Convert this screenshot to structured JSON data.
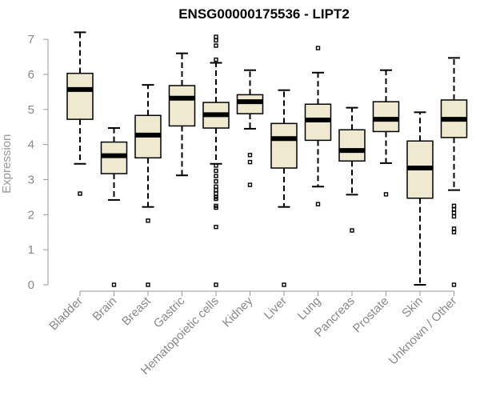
{
  "chart_data": {
    "type": "box",
    "title": "ENSG00000175536 - LIPT2",
    "ylabel": "Expression",
    "xlabel": "",
    "ylim": [
      0,
      7.3
    ],
    "yticks": [
      0,
      1,
      2,
      3,
      4,
      5,
      6,
      7
    ],
    "grid": false,
    "legend": "none",
    "colors": {
      "box_fill": "#efe9cf",
      "stroke": "#000000",
      "axis": "#999999"
    },
    "categories": [
      "Bladder",
      "Brain",
      "Breast",
      "Gastric",
      "Hematopoietic cells",
      "Kidney",
      "Liver",
      "Lung",
      "Pancreas",
      "Prostate",
      "Skin",
      "Unknown / Other"
    ],
    "boxes": [
      {
        "whisker_low": 3.45,
        "q1": 4.72,
        "median": 5.57,
        "q3": 6.03,
        "whisker_high": 7.2,
        "outliers": [
          2.6
        ]
      },
      {
        "whisker_low": 2.42,
        "q1": 3.17,
        "median": 3.68,
        "q3": 4.07,
        "whisker_high": 4.47,
        "outliers": [
          0
        ]
      },
      {
        "whisker_low": 2.22,
        "q1": 3.62,
        "median": 4.27,
        "q3": 4.83,
        "whisker_high": 5.7,
        "outliers": [
          1.83,
          0
        ]
      },
      {
        "whisker_low": 3.12,
        "q1": 4.53,
        "median": 5.32,
        "q3": 5.68,
        "whisker_high": 6.6,
        "outliers": []
      },
      {
        "whisker_low": 3.45,
        "q1": 4.47,
        "median": 4.85,
        "q3": 5.2,
        "whisker_high": 6.33,
        "outliers": [
          7.07,
          6.97,
          6.82,
          6.42,
          3.4,
          3.25,
          3.1,
          2.95,
          2.8,
          2.7,
          2.6,
          2.5,
          2.45,
          2.25,
          2.2,
          1.65,
          0
        ]
      },
      {
        "whisker_low": 4.45,
        "q1": 4.88,
        "median": 5.22,
        "q3": 5.42,
        "whisker_high": 6.12,
        "outliers": [
          3.7,
          3.5,
          2.85
        ]
      },
      {
        "whisker_low": 2.22,
        "q1": 3.33,
        "median": 4.17,
        "q3": 4.6,
        "whisker_high": 5.55,
        "outliers": [
          0
        ]
      },
      {
        "whisker_low": 2.8,
        "q1": 4.12,
        "median": 4.7,
        "q3": 5.15,
        "whisker_high": 6.05,
        "outliers": [
          6.75,
          2.3
        ]
      },
      {
        "whisker_low": 2.57,
        "q1": 3.53,
        "median": 3.83,
        "q3": 4.42,
        "whisker_high": 5.05,
        "outliers": [
          1.55
        ]
      },
      {
        "whisker_low": 3.47,
        "q1": 4.37,
        "median": 4.72,
        "q3": 5.22,
        "whisker_high": 6.12,
        "outliers": [
          2.58
        ]
      },
      {
        "whisker_low": 0,
        "q1": 2.47,
        "median": 3.33,
        "q3": 4.1,
        "whisker_high": 4.92,
        "outliers": []
      },
      {
        "whisker_low": 2.7,
        "q1": 4.2,
        "median": 4.72,
        "q3": 5.27,
        "whisker_high": 6.47,
        "outliers": [
          2.25,
          2.15,
          2.05,
          1.95,
          1.6,
          1.5,
          0
        ]
      }
    ]
  }
}
